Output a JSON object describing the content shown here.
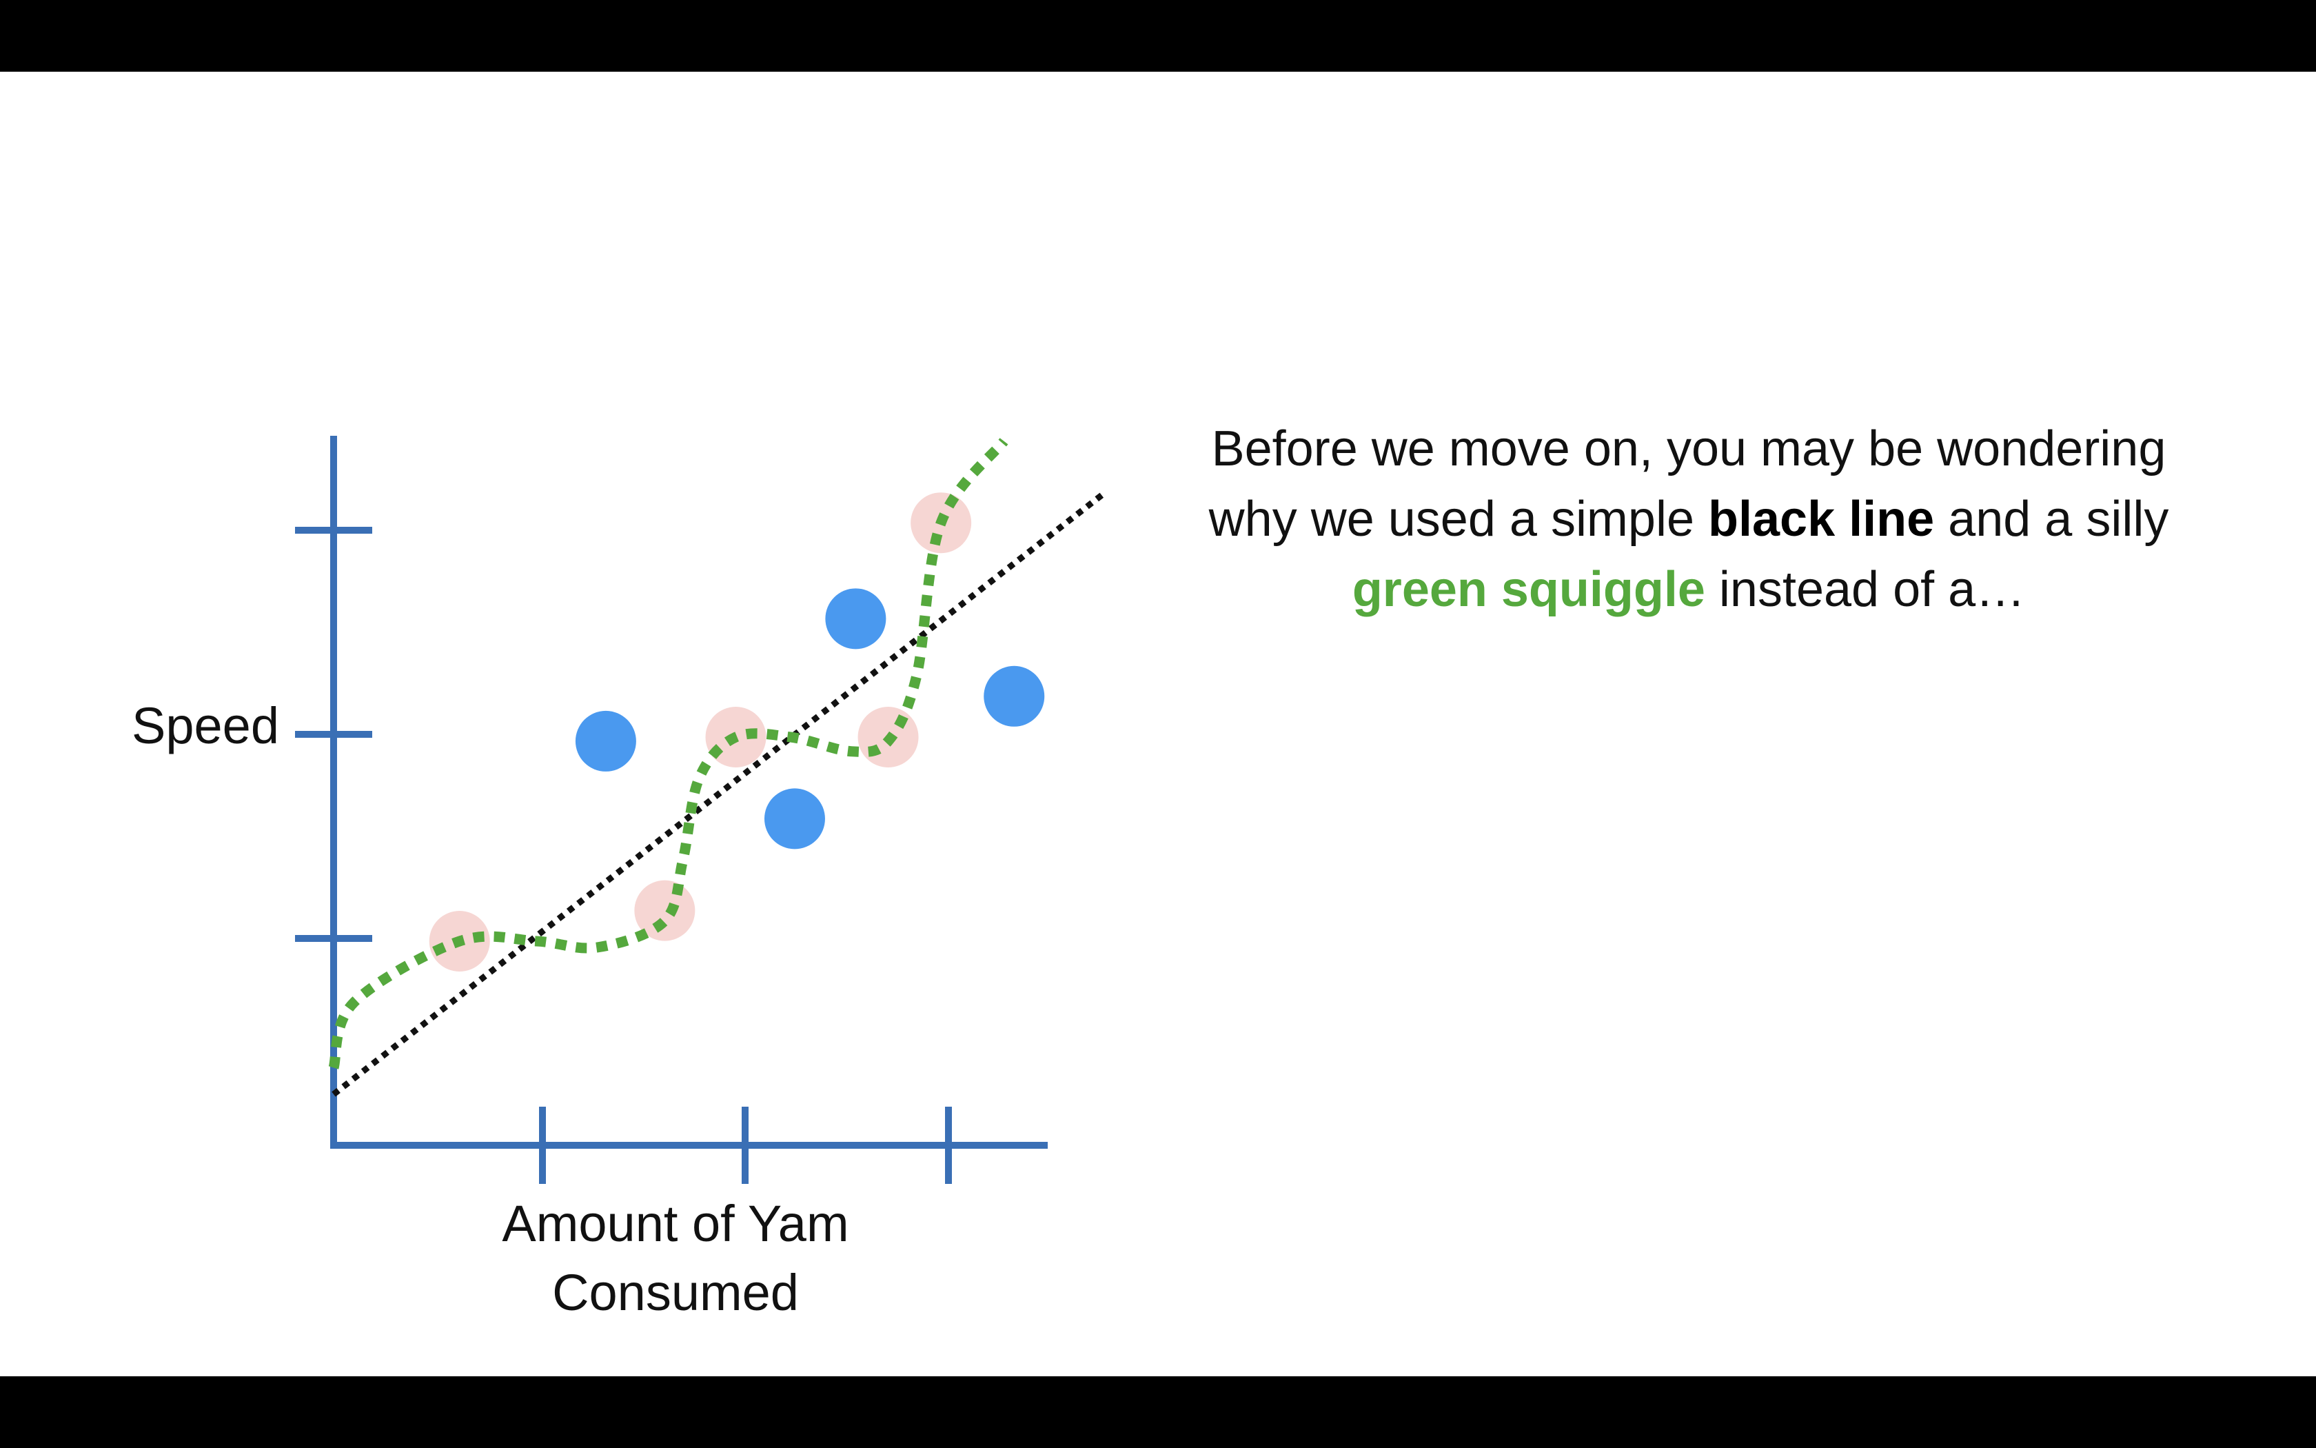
{
  "colors": {
    "axis": "#3a6fb5",
    "blue_points": "#4a99ef",
    "pink_points": "#f6d6d3",
    "green_squiggle": "#55a83d",
    "black_line": "#111111"
  },
  "caption": {
    "line1": "Before we move on, you may be wondering",
    "line2_pre": "why we used a simple ",
    "line2_bold": "black line",
    "line2_post": " and a silly",
    "line3_green": "green squiggle",
    "line3_post": " instead of a…"
  },
  "chart_data": {
    "type": "scatter",
    "xlabel": "Amount of Yam Consumed",
    "ylabel": "Speed",
    "xlim": [
      0,
      3.5
    ],
    "ylim": [
      0,
      3.4
    ],
    "grid": false,
    "series": [
      {
        "kind": "points",
        "color_key": "pink_points",
        "points": [
          {
            "x": 0.62,
            "y": 1.0
          },
          {
            "x": 1.63,
            "y": 1.15
          },
          {
            "x": 1.98,
            "y": 2.0
          },
          {
            "x": 2.73,
            "y": 2.0
          },
          {
            "x": 2.99,
            "y": 3.05
          }
        ]
      },
      {
        "kind": "points",
        "color_key": "blue_points",
        "points": [
          {
            "x": 1.34,
            "y": 1.98
          },
          {
            "x": 2.27,
            "y": 1.6
          },
          {
            "x": 2.57,
            "y": 2.58
          },
          {
            "x": 3.35,
            "y": 2.2
          }
        ]
      },
      {
        "kind": "line",
        "color_key": "black_line",
        "points": [
          {
            "x": 0.0,
            "y": 0.25
          },
          {
            "x": 3.8,
            "y": 3.2
          }
        ]
      },
      {
        "kind": "curve",
        "color_key": "green_squiggle",
        "points": [
          {
            "x": 0.0,
            "y": 0.38
          },
          {
            "x": 0.1,
            "y": 0.7
          },
          {
            "x": 0.62,
            "y": 1.0
          },
          {
            "x": 1.0,
            "y": 1.0
          },
          {
            "x": 1.3,
            "y": 0.97
          },
          {
            "x": 1.63,
            "y": 1.1
          },
          {
            "x": 1.72,
            "y": 1.4
          },
          {
            "x": 1.8,
            "y": 1.8
          },
          {
            "x": 1.98,
            "y": 2.0
          },
          {
            "x": 2.25,
            "y": 2.0
          },
          {
            "x": 2.55,
            "y": 1.93
          },
          {
            "x": 2.73,
            "y": 1.98
          },
          {
            "x": 2.87,
            "y": 2.3
          },
          {
            "x": 2.99,
            "y": 3.05
          },
          {
            "x": 3.3,
            "y": 3.45
          }
        ]
      }
    ]
  }
}
